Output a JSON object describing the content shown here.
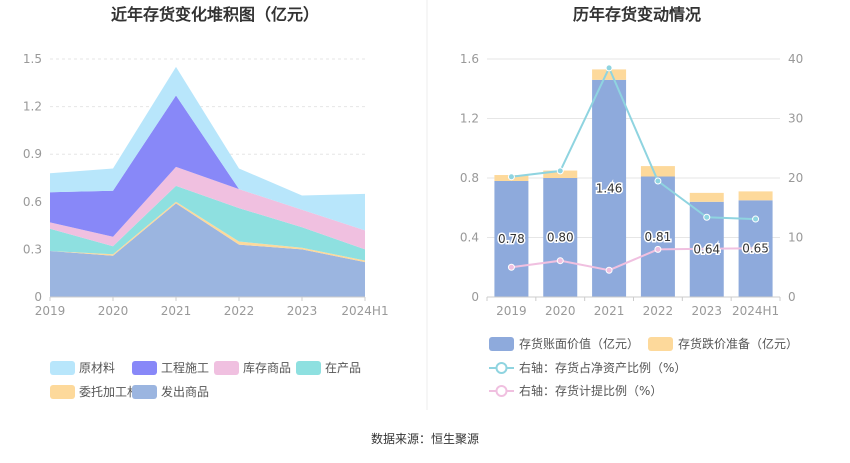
{
  "footer": {
    "source": "数据来源：恒生聚源"
  },
  "chart_data": [
    {
      "type": "area",
      "stacked": true,
      "title": "近年存货变化堆积图（亿元）",
      "categories": [
        "2019",
        "2020",
        "2021",
        "2022",
        "2023",
        "2024H1"
      ],
      "ylim": [
        0,
        1.5
      ],
      "yticks": [
        "0",
        "0.3",
        "0.6",
        "0.9",
        "1.2",
        "1.5"
      ],
      "grid": true,
      "legend_position": "bottom",
      "series": [
        {
          "name": "发出商品",
          "color": "#9bb5e0",
          "values": [
            0.29,
            0.26,
            0.59,
            0.33,
            0.3,
            0.22
          ]
        },
        {
          "name": "委托加工材料",
          "color": "#fdd99b",
          "values": [
            0.0,
            0.01,
            0.01,
            0.02,
            0.01,
            0.01
          ]
        },
        {
          "name": "在产品",
          "color": "#8ee0e0",
          "values": [
            0.14,
            0.05,
            0.1,
            0.21,
            0.13,
            0.07
          ]
        },
        {
          "name": "库存商品",
          "color": "#f0c0e0",
          "values": [
            0.04,
            0.06,
            0.12,
            0.12,
            0.11,
            0.12
          ]
        },
        {
          "name": "工程施工",
          "color": "#8888f8",
          "values": [
            0.19,
            0.29,
            0.45,
            0.0,
            0.0,
            0.0
          ]
        },
        {
          "name": "原材料",
          "color": "#b8e6fb",
          "values": [
            0.12,
            0.14,
            0.18,
            0.13,
            0.09,
            0.23
          ]
        }
      ]
    },
    {
      "type": "bar",
      "stacked": true,
      "title": "历年存货变动情况",
      "categories": [
        "2019",
        "2020",
        "2021",
        "2022",
        "2023",
        "2024H1"
      ],
      "ylim": [
        0,
        1.6
      ],
      "yticks": [
        "0",
        "0.4",
        "0.8",
        "1.2",
        "1.6"
      ],
      "y2lim": [
        0,
        40
      ],
      "y2ticks": [
        "0",
        "10",
        "20",
        "30",
        "40"
      ],
      "grid": true,
      "legend_position": "bottom",
      "series": [
        {
          "name": "存货账面价值（亿元）",
          "kind": "bar",
          "color": "#8eaadc",
          "values": [
            0.78,
            0.8,
            1.46,
            0.81,
            0.64,
            0.65
          ],
          "labels": [
            "0.78",
            "0.80",
            "1.46",
            "0.81",
            "0.64",
            "0.65"
          ]
        },
        {
          "name": "存货跌价准备（亿元）",
          "kind": "bar",
          "color": "#fdd99b",
          "values": [
            0.04,
            0.05,
            0.07,
            0.07,
            0.06,
            0.06
          ]
        },
        {
          "name": "右轴：存货占净资产比例（%）",
          "kind": "line",
          "axis": "right",
          "color": "#8fd4e0",
          "values": [
            20.2,
            21.2,
            38.5,
            19.5,
            13.4,
            13.1
          ]
        },
        {
          "name": "右轴：存货计提比例（%）",
          "kind": "line",
          "axis": "right",
          "color": "#f0c0e0",
          "values": [
            5.0,
            6.1,
            4.5,
            8.0,
            8.1,
            8.2
          ]
        }
      ]
    }
  ]
}
